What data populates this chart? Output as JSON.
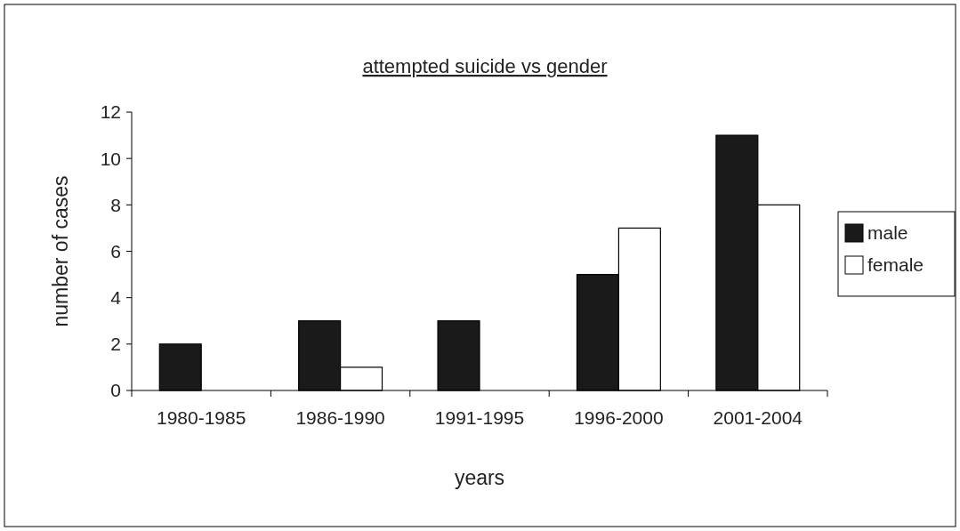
{
  "chart_data": {
    "type": "bar",
    "title": "attempted suicide vs gender",
    "xlabel": "years",
    "ylabel": "number of cases",
    "categories": [
      "1980-1985",
      "1986-1990",
      "1991-1995",
      "1996-2000",
      "2001-2004"
    ],
    "series": [
      {
        "name": "male",
        "color": "#1a1a1a",
        "values": [
          2,
          3,
          3,
          5,
          11
        ]
      },
      {
        "name": "female",
        "color": "#ffffff",
        "values": [
          0,
          1,
          0,
          7,
          8
        ]
      }
    ],
    "ylim": [
      0,
      12
    ],
    "yticks": [
      0,
      2,
      4,
      6,
      8,
      10,
      12
    ],
    "grid": false,
    "legend": "right"
  }
}
